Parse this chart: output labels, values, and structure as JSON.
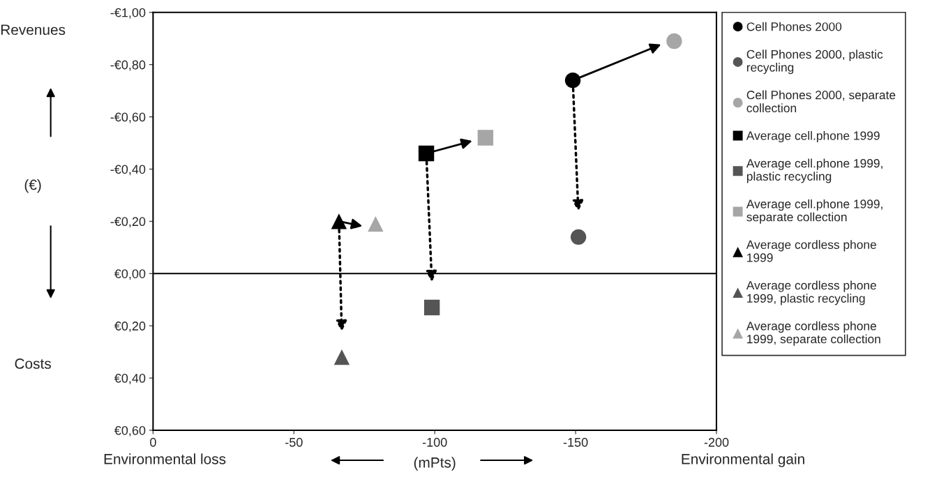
{
  "chart_data": {
    "type": "scatter",
    "xlabel": "(mPts)",
    "annotations": [
      "Revenues",
      "(€)",
      "Costs",
      "Environmental loss",
      "Environmental gain"
    ],
    "xlim": [
      0,
      -200
    ],
    "xticks": [
      0,
      -50,
      -100,
      -150,
      -200
    ],
    "ylim": [
      0.6,
      -1.0
    ],
    "yticks": [
      {
        "value": -1.0,
        "label": "-€1,00"
      },
      {
        "value": -0.8,
        "label": "-€0,80"
      },
      {
        "value": -0.6,
        "label": "-€0,60"
      },
      {
        "value": -0.4,
        "label": "-€0,40"
      },
      {
        "value": -0.2,
        "label": "-€0,20"
      },
      {
        "value": 0,
        "label": "€0,00"
      },
      {
        "value": 0.2,
        "label": "€0,20"
      },
      {
        "value": 0.4,
        "label": "€0,40"
      },
      {
        "value": 0.6,
        "label": "€0,60"
      }
    ],
    "ref_lines": [
      {
        "axis": "y",
        "value": 0,
        "color": "#000000"
      }
    ],
    "grid": false,
    "legend": "right",
    "series": [
      {
        "name": "Cell Phones 2000",
        "color": "#000000",
        "marker": "circle",
        "x": [
          -149
        ],
        "values": [
          -0.74
        ]
      },
      {
        "name": "Cell Phones 2000, plastic recycling",
        "color": "#555555",
        "marker": "circle",
        "x": [
          -151
        ],
        "values": [
          -0.14
        ]
      },
      {
        "name": "Cell Phones 2000, separate collection",
        "color": "#a6a6a6",
        "marker": "circle",
        "x": [
          -185
        ],
        "values": [
          -0.89
        ]
      },
      {
        "name": "Average cell.phone 1999",
        "color": "#000000",
        "marker": "square",
        "x": [
          -97
        ],
        "values": [
          -0.46
        ]
      },
      {
        "name": "Average cell.phone 1999, plastic recycling",
        "color": "#555555",
        "marker": "square",
        "x": [
          -99
        ],
        "values": [
          0.13
        ]
      },
      {
        "name": "Average cell.phone 1999, separate collection",
        "color": "#a6a6a6",
        "marker": "square",
        "x": [
          -118
        ],
        "values": [
          -0.52
        ]
      },
      {
        "name": "Average cordless phone 1999",
        "color": "#000000",
        "marker": "triangle",
        "x": [
          -66
        ],
        "values": [
          -0.2
        ]
      },
      {
        "name": "Average cordless phone 1999, plastic recycling",
        "color": "#555555",
        "marker": "triangle",
        "x": [
          -67
        ],
        "values": [
          0.32
        ]
      },
      {
        "name": "Average cordless phone 1999, separate collection",
        "color": "#a6a6a6",
        "marker": "triangle",
        "x": [
          -79
        ],
        "values": [
          -0.19
        ]
      }
    ]
  }
}
